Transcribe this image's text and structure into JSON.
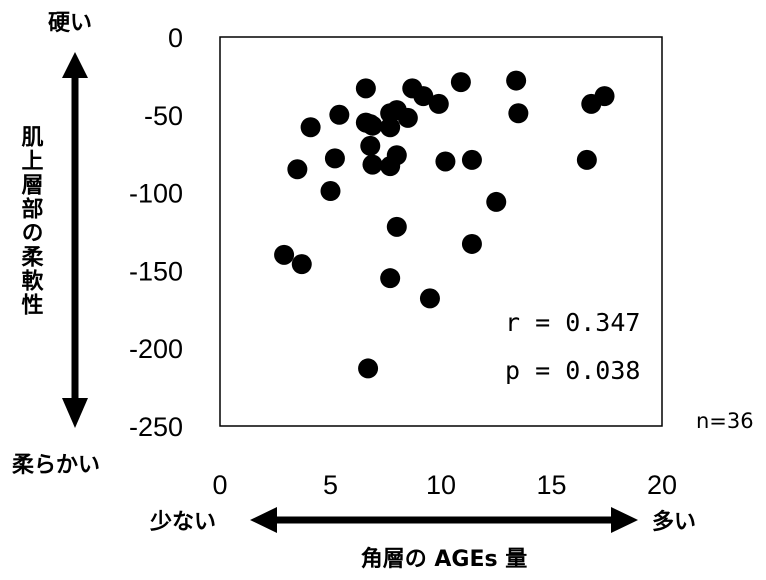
{
  "chart_data": {
    "type": "scatter",
    "title": "",
    "xlabel": "角層の AGEs 量",
    "ylabel": "肌上層部の柔軟性",
    "xlim": [
      0,
      20
    ],
    "ylim": [
      -250,
      0
    ],
    "x_ticks": [
      0,
      5,
      10,
      15,
      20
    ],
    "y_ticks": [
      0,
      -50,
      -100,
      -150,
      -200,
      -250
    ],
    "x_arrow_left_label": "少ない",
    "x_arrow_right_label": "多い",
    "y_arrow_top_label": "硬い",
    "y_arrow_bottom_label": "柔らかい",
    "stats": {
      "r": "r = 0.347",
      "p": "p = 0.038",
      "n": "n=36"
    },
    "grid": false,
    "marker_color": "#000000",
    "points": [
      {
        "x": 2.9,
        "y": -140
      },
      {
        "x": 3.7,
        "y": -146
      },
      {
        "x": 3.5,
        "y": -85
      },
      {
        "x": 4.1,
        "y": -58
      },
      {
        "x": 5.0,
        "y": -99
      },
      {
        "x": 5.2,
        "y": -78
      },
      {
        "x": 5.4,
        "y": -50
      },
      {
        "x": 6.6,
        "y": -33
      },
      {
        "x": 6.6,
        "y": -55
      },
      {
        "x": 6.8,
        "y": -70
      },
      {
        "x": 6.9,
        "y": -57
      },
      {
        "x": 6.9,
        "y": -82
      },
      {
        "x": 6.7,
        "y": -213
      },
      {
        "x": 7.7,
        "y": -49
      },
      {
        "x": 7.7,
        "y": -58
      },
      {
        "x": 7.7,
        "y": -83
      },
      {
        "x": 7.7,
        "y": -155
      },
      {
        "x": 8.0,
        "y": -47
      },
      {
        "x": 8.0,
        "y": -76
      },
      {
        "x": 8.0,
        "y": -122
      },
      {
        "x": 8.5,
        "y": -52
      },
      {
        "x": 8.7,
        "y": -33
      },
      {
        "x": 9.2,
        "y": -38
      },
      {
        "x": 9.5,
        "y": -168
      },
      {
        "x": 9.9,
        "y": -43
      },
      {
        "x": 10.2,
        "y": -80
      },
      {
        "x": 10.9,
        "y": -29
      },
      {
        "x": 11.4,
        "y": -79
      },
      {
        "x": 11.4,
        "y": -133
      },
      {
        "x": 12.5,
        "y": -106
      },
      {
        "x": 13.4,
        "y": -28
      },
      {
        "x": 13.5,
        "y": -49
      },
      {
        "x": 16.6,
        "y": -79
      },
      {
        "x": 16.8,
        "y": -43
      },
      {
        "x": 17.4,
        "y": -38
      },
      {
        "x": 6.8,
        "y": -56
      }
    ]
  }
}
